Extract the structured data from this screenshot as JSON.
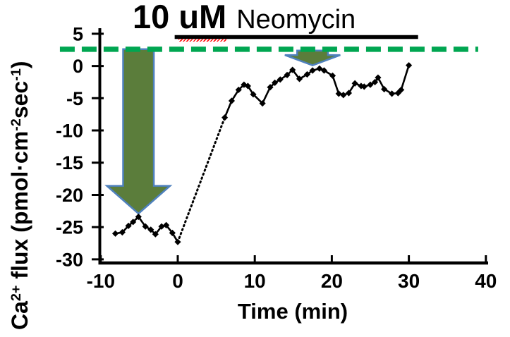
{
  "chart_data": {
    "type": "line",
    "title": {
      "dose_number": "10 ",
      "dose_unit": "uM",
      "drug": "Neomycin"
    },
    "xlabel": "Time (min)",
    "ylabel": "Ca²⁺ flux (pmol·cm⁻²sec⁻¹)",
    "ylabel_parts": [
      {
        "text": "Ca",
        "sup": false
      },
      {
        "text": "2+",
        "sup": true
      },
      {
        "text": " flux (pmol·cm",
        "sup": false
      },
      {
        "text": "-2",
        "sup": true
      },
      {
        "text": "sec",
        "sup": false
      },
      {
        "text": "-1",
        "sup": true
      },
      {
        "text": ")",
        "sup": false
      }
    ],
    "xlim": [
      -10,
      40
    ],
    "ylim": [
      -30,
      5
    ],
    "xticks": [
      "-10",
      "0",
      "10",
      "20",
      "30",
      "40"
    ],
    "yticks": [
      "5",
      "0",
      "-5",
      "-10",
      "-15",
      "-20",
      "-25",
      "-30"
    ],
    "grid": false,
    "legend": null,
    "reference_line": {
      "y": 2.6,
      "x_start": -15.3,
      "x_end": 39.0,
      "color": "#00a651",
      "style": "dashed"
    },
    "treatment_bar": {
      "x_start": -0.4,
      "x_end": 31.2,
      "y": 4.5,
      "color": "#000000"
    },
    "series": [
      {
        "name": "Ca2+ flux",
        "color": "#000000",
        "marker": "diamond",
        "points": [
          [
            -8.1,
            -26.0
          ],
          [
            -7.2,
            -25.8
          ],
          [
            -6.4,
            -24.8
          ],
          [
            -5.8,
            -24.2
          ],
          [
            -5.1,
            -23.4
          ],
          [
            -4.2,
            -24.9
          ],
          [
            -3.5,
            -25.4
          ],
          [
            -2.9,
            -26.1
          ],
          [
            -2.1,
            -24.9
          ],
          [
            -1.5,
            -24.7
          ],
          [
            -0.7,
            -25.9
          ],
          [
            0,
            -27.3
          ],
          [
            6.1,
            -8.0
          ],
          [
            7.0,
            -5.4
          ],
          [
            7.9,
            -3.7
          ],
          [
            8.6,
            -2.9
          ],
          [
            9.1,
            -3.1
          ],
          [
            9.8,
            -4.4
          ],
          [
            11.0,
            -5.8
          ],
          [
            12.0,
            -3.3
          ],
          [
            12.6,
            -2.6
          ],
          [
            13.3,
            -2.1
          ],
          [
            14.2,
            -1.4
          ],
          [
            14.9,
            -0.6
          ],
          [
            15.8,
            -2.0
          ],
          [
            16.8,
            -1.3
          ],
          [
            17.5,
            -0.7
          ],
          [
            18.4,
            -0.4
          ],
          [
            19.0,
            -0.7
          ],
          [
            20.1,
            -1.5
          ],
          [
            20.9,
            -4.3
          ],
          [
            21.5,
            -4.5
          ],
          [
            22.2,
            -4.2
          ],
          [
            23.0,
            -2.7
          ],
          [
            23.8,
            -3.1
          ],
          [
            24.2,
            -3.2
          ],
          [
            25.0,
            -2.9
          ],
          [
            25.6,
            -2.5
          ],
          [
            26.0,
            -1.8
          ],
          [
            26.8,
            -3.6
          ],
          [
            27.8,
            -4.3
          ],
          [
            28.6,
            -4.2
          ],
          [
            29.0,
            -3.7
          ],
          [
            30.0,
            0.1
          ]
        ],
        "segments": [
          {
            "from": 0,
            "to": 11,
            "style": "solid"
          },
          {
            "from": 11,
            "to": 12,
            "style": "dotted"
          },
          {
            "from": 12,
            "to": 43,
            "style": "solid"
          }
        ]
      }
    ],
    "arrows": [
      {
        "name": "large-inhibition-arrow",
        "cx": -5.1,
        "top_y": 2.6,
        "head_base_y": -18.6,
        "tip_y": -22.9,
        "stem_half_width": 2.0,
        "head_half_width": 4.1
      },
      {
        "name": "small-inhibition-arrow",
        "cx": 17.5,
        "top_y": 2.4,
        "head_base_y": 1.7,
        "tip_y": 0.1,
        "stem_half_width": 2.0,
        "head_half_width": 3.6
      }
    ],
    "colors": {
      "arrow_fill": "#5b7d3b",
      "arrow_border": "#4f81bd",
      "reference_green": "#00a651",
      "series_black": "#000000"
    }
  }
}
